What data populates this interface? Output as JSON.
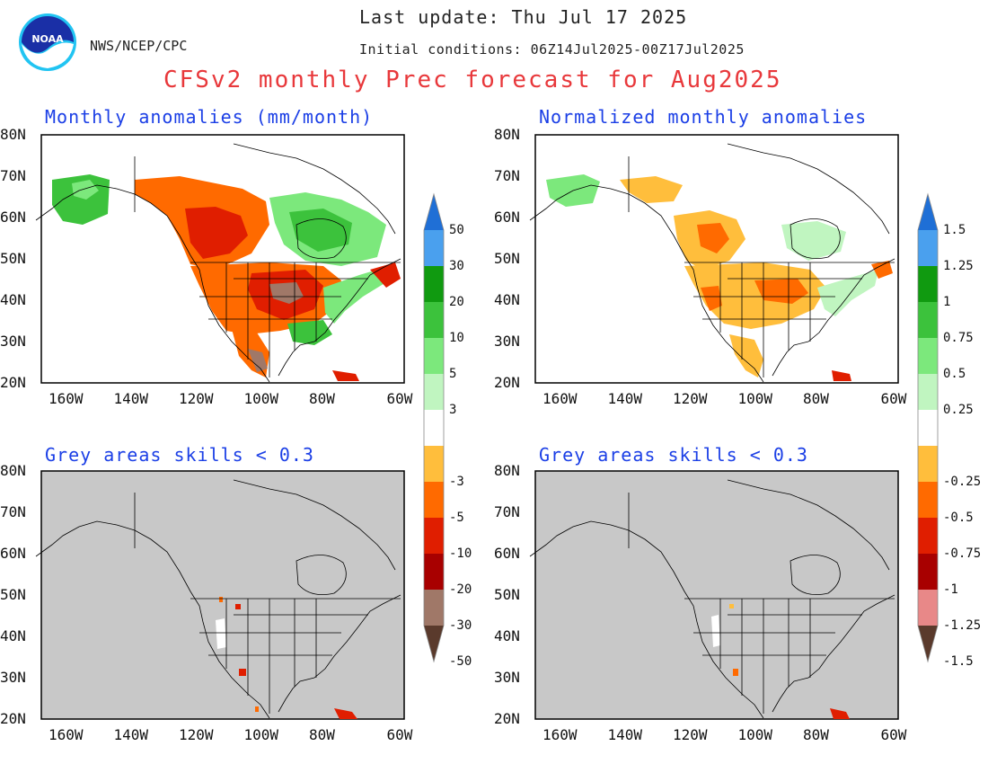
{
  "header": {
    "last_update": "Last update: Thu Jul 17 2025",
    "agency": "NWS/NCEP/CPC",
    "initial_conditions": "Initial conditions: 06Z14Jul2025-00Z17Jul2025",
    "title": "CFSv2 monthly Prec forecast for Aug2025"
  },
  "logo": {
    "text": "NOAA",
    "icon": "noaa-logo"
  },
  "panels": [
    {
      "title": "Monthly anomalies (mm/month)",
      "kind": "anomaly"
    },
    {
      "title": "Normalized monthly anomalies",
      "kind": "normalized"
    },
    {
      "title": "Grey areas skills < 0.3",
      "kind": "skill-anomaly"
    },
    {
      "title": "Grey areas skills < 0.3",
      "kind": "skill-normalized"
    }
  ],
  "axes": {
    "lat_labels": [
      "80N",
      "70N",
      "60N",
      "50N",
      "40N",
      "30N",
      "20N"
    ],
    "lon_labels": [
      "160W",
      "140W",
      "120W",
      "100W",
      "80W",
      "60W"
    ]
  },
  "colorbars": {
    "anomaly_labels": [
      "50",
      "30",
      "20",
      "10",
      "5",
      "3",
      "-3",
      "-5",
      "-10",
      "-20",
      "-30",
      "-50"
    ],
    "normalized_labels": [
      "1.5",
      "1.25",
      "1",
      "0.75",
      "0.5",
      "0.25",
      "-0.25",
      "-0.5",
      "-0.75",
      "-1",
      "-1.25",
      "-1.5"
    ],
    "left_colors": [
      "#1f6fd6",
      "#4aa0ee",
      "#109a10",
      "#3cc23c",
      "#7ce87c",
      "#c0f5c0",
      "#ffffff",
      "#ffbe3c",
      "#ff6a00",
      "#e01e00",
      "#a80000",
      "#a07868",
      "#5a3a2c"
    ],
    "right_colors": [
      "#1f6fd6",
      "#4aa0ee",
      "#109a10",
      "#3cc23c",
      "#7ce87c",
      "#c0f5c0",
      "#ffffff",
      "#ffbe3c",
      "#ff6a00",
      "#e01e00",
      "#a80000",
      "#e88888",
      "#5a3a2c"
    ]
  },
  "colors": {
    "title": "#e8383b",
    "panel_title": "#1b3fe6",
    "grey_mask": "#c8c8c8"
  }
}
